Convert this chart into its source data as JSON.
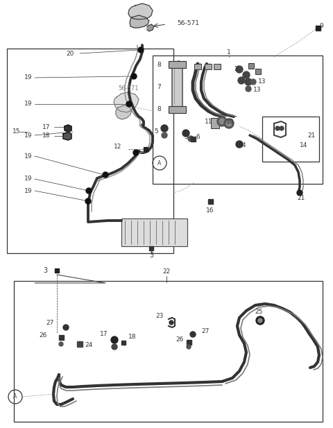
{
  "bg_color": "#ffffff",
  "line_color": "#333333",
  "text_color": "#333333",
  "dark_color": "#111111",
  "gray_color": "#888888",
  "fig_width": 4.8,
  "fig_height": 6.17,
  "dpi": 100
}
